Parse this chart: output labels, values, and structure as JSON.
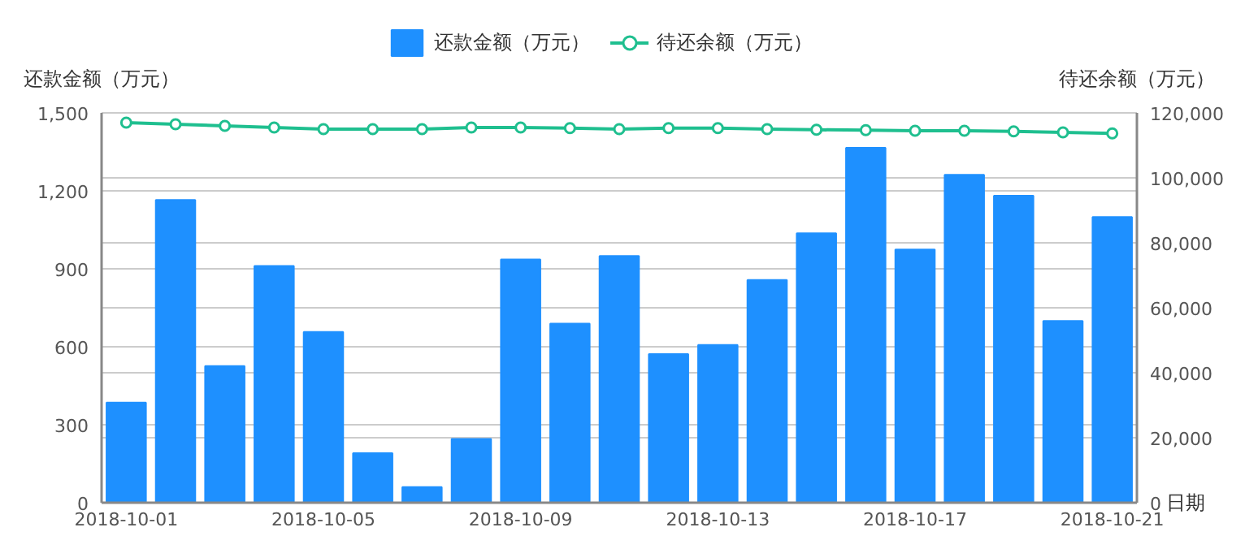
{
  "chart_data": {
    "type": "bar",
    "xlabel": "日期",
    "ylabel": "还款金额（万元）",
    "y2label": "待还余额（万元）",
    "categories": [
      "2018-10-01",
      null,
      null,
      null,
      "2018-10-05",
      null,
      null,
      null,
      "2018-10-09",
      null,
      null,
      null,
      "2018-10-13",
      null,
      null,
      null,
      "2018-10-17",
      null,
      null,
      null,
      "2018-10-21"
    ],
    "series": [
      {
        "name": "还款金额（万元）",
        "color": "#1e90ff",
        "values": [
          385,
          1165,
          526,
          911,
          657,
          191,
          60,
          245,
          936,
          689,
          949,
          572,
          607,
          857,
          1037,
          1366,
          974,
          1262,
          1181,
          699,
          1099
        ]
      },
      {
        "name": "待还余额（万元）",
        "type": "line",
        "axis": "y2",
        "color": "#1fbf8f",
        "marker": "circle",
        "values": [
          117000,
          116500,
          116000,
          115500,
          115000,
          115000,
          115000,
          115500,
          115500,
          115300,
          115000,
          115300,
          115300,
          115000,
          114800,
          114700,
          114500,
          114500,
          114300,
          114000,
          113700
        ]
      }
    ],
    "ylim": [
      0,
      1500
    ],
    "yticks": [
      {
        "value": 0,
        "label": "0"
      },
      {
        "value": 300,
        "label": "300"
      },
      {
        "value": 600,
        "label": "600"
      },
      {
        "value": 900,
        "label": "900"
      },
      {
        "value": 1200,
        "label": "1,200"
      },
      {
        "value": 1500,
        "label": "1,500"
      }
    ],
    "y2lim": [
      0,
      120000
    ],
    "y2ticks": [
      {
        "value": 0,
        "label": "0"
      },
      {
        "value": 20000,
        "label": "20,000"
      },
      {
        "value": 40000,
        "label": "40,000"
      },
      {
        "value": 60000,
        "label": "60,000"
      },
      {
        "value": 80000,
        "label": "80,000"
      },
      {
        "value": 100000,
        "label": "100,000"
      },
      {
        "value": 120000,
        "label": "120,000"
      }
    ],
    "grid": true,
    "legend": "top"
  }
}
